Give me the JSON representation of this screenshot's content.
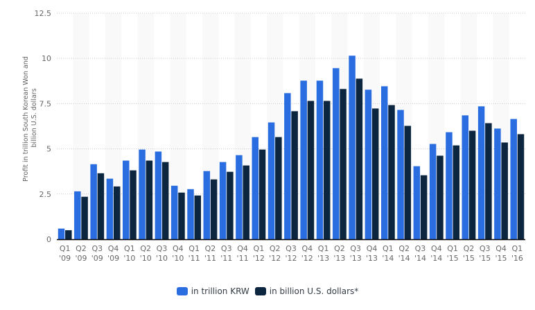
{
  "chart_data": {
    "type": "bar",
    "title": "",
    "xlabel": "",
    "ylabel": "Profit in trillion South Korean Won and billion U.S. dollars",
    "ylabel_lines": [
      "Profit in trillion South Korean Won and",
      "billion U.S. dollars"
    ],
    "ylim": [
      0,
      12.5
    ],
    "yticks": [
      0,
      2.5,
      5,
      7.5,
      10,
      12.5
    ],
    "ytick_labels": [
      "0",
      "2.5",
      "5",
      "7.5",
      "10",
      "12.5"
    ],
    "grid": true,
    "legend_position": "bottom",
    "categories": [
      [
        "Q1",
        "'09"
      ],
      [
        "Q2",
        "'09"
      ],
      [
        "Q3",
        "'09"
      ],
      [
        "Q4",
        "'09"
      ],
      [
        "Q1",
        "'10"
      ],
      [
        "Q2",
        "'10"
      ],
      [
        "Q3",
        "'10"
      ],
      [
        "Q4",
        "'10"
      ],
      [
        "Q1",
        "'11"
      ],
      [
        "Q2",
        "'11"
      ],
      [
        "Q3",
        "'11"
      ],
      [
        "Q4",
        "'11"
      ],
      [
        "Q1",
        "'12"
      ],
      [
        "Q2",
        "'12"
      ],
      [
        "Q3",
        "'12"
      ],
      [
        "Q4",
        "'12"
      ],
      [
        "Q1",
        "'13"
      ],
      [
        "Q2",
        "'13"
      ],
      [
        "Q3",
        "'13"
      ],
      [
        "Q4",
        "'13"
      ],
      [
        "Q1",
        "'14"
      ],
      [
        "Q2",
        "'14"
      ],
      [
        "Q3",
        "'14"
      ],
      [
        "Q4",
        "'14"
      ],
      [
        "Q1",
        "'15"
      ],
      [
        "Q2",
        "'15"
      ],
      [
        "Q3",
        "'15"
      ],
      [
        "Q4",
        "'15"
      ],
      [
        "Q1",
        "'16"
      ]
    ],
    "series": [
      {
        "name": "in trillion KRW",
        "color": "#2a6de0",
        "values": [
          0.59,
          2.65,
          4.15,
          3.35,
          4.35,
          4.96,
          4.85,
          2.96,
          2.77,
          3.77,
          4.27,
          4.65,
          5.65,
          6.46,
          8.08,
          8.77,
          8.77,
          9.46,
          10.15,
          8.27,
          8.46,
          7.15,
          4.04,
          5.27,
          5.92,
          6.85,
          7.35,
          6.12,
          6.65
        ]
      },
      {
        "name": "in billion U.S. dollars*",
        "color": "#0c2640",
        "values": [
          0.5,
          2.35,
          3.65,
          2.92,
          3.81,
          4.35,
          4.27,
          2.58,
          2.42,
          3.31,
          3.73,
          4.08,
          4.96,
          5.65,
          7.08,
          7.65,
          7.65,
          8.31,
          8.88,
          7.23,
          7.42,
          6.27,
          3.54,
          4.62,
          5.19,
          6.0,
          6.42,
          5.35,
          5.81
        ]
      }
    ]
  }
}
